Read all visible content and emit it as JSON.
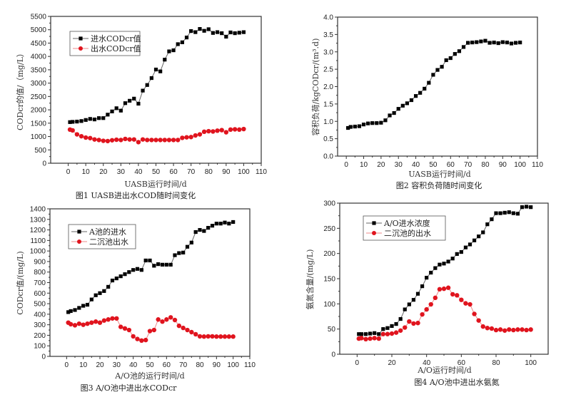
{
  "chart_data": [
    {
      "type": "line",
      "caption": "图1 UASB进出水COD随时间变化",
      "xlabel": "UASB运行时间/d",
      "ylabel": "CODcr的值/（mg/L）",
      "xlim": [
        -10,
        110
      ],
      "ylim": [
        0,
        5500
      ],
      "xticks": [
        0,
        10,
        20,
        30,
        40,
        50,
        60,
        70,
        80,
        90,
        100,
        110
      ],
      "yticks": [
        0,
        500,
        1000,
        1500,
        2000,
        2500,
        3000,
        3500,
        4000,
        4500,
        5000,
        5500
      ],
      "legend_position": "top-left",
      "series": [
        {
          "name": "进水CODcr值",
          "marker": "square",
          "color": "#000000",
          "x": [
            1,
            2.5,
            5,
            7.5,
            10,
            12.5,
            15,
            17.5,
            20,
            22.5,
            25,
            27.5,
            30,
            32.5,
            35,
            37.5,
            40,
            42.5,
            45,
            47.5,
            50,
            52.5,
            55,
            57.5,
            60,
            62.5,
            65,
            67.5,
            70,
            72.5,
            75,
            77.5,
            80,
            82.5,
            85,
            87.5,
            90,
            92.5,
            95,
            97.5,
            100
          ],
          "y": [
            1540,
            1550,
            1560,
            1580,
            1620,
            1660,
            1640,
            1690,
            1690,
            1820,
            1940,
            2060,
            1970,
            2250,
            2340,
            2420,
            2230,
            2720,
            2930,
            3190,
            3510,
            3440,
            3880,
            4190,
            4230,
            4460,
            4530,
            4710,
            4950,
            4910,
            5030,
            4960,
            5020,
            4880,
            4910,
            4870,
            4740,
            4900,
            4870,
            4890,
            4910
          ]
        },
        {
          "name": "出水CODcr值",
          "marker": "circle",
          "color": "#e0141e",
          "x": [
            1,
            2.5,
            5,
            7.5,
            10,
            12.5,
            15,
            17.5,
            20,
            22.5,
            25,
            27.5,
            30,
            32.5,
            35,
            37.5,
            40,
            42.5,
            45,
            47.5,
            50,
            52.5,
            55,
            57.5,
            60,
            62.5,
            65,
            67.5,
            70,
            72.5,
            75,
            77.5,
            80,
            82.5,
            85,
            87.5,
            90,
            92.5,
            95,
            97.5,
            100
          ],
          "y": [
            1260,
            1230,
            1080,
            1010,
            960,
            940,
            890,
            870,
            840,
            830,
            860,
            880,
            870,
            910,
            890,
            890,
            790,
            890,
            870,
            870,
            870,
            870,
            870,
            870,
            870,
            870,
            950,
            970,
            980,
            1040,
            1080,
            1180,
            1200,
            1190,
            1220,
            1240,
            1160,
            1260,
            1270,
            1260,
            1280
          ]
        }
      ]
    },
    {
      "type": "line",
      "caption": "图2 容积负荷随时间变化",
      "xlabel": "UASB运行时间/d",
      "ylabel": "容积负荷/kgCODcr/(m³.d)",
      "xlim": [
        -5,
        110
      ],
      "ylim": [
        0,
        4.0
      ],
      "xticks": [
        0,
        10,
        20,
        30,
        40,
        50,
        60,
        70,
        80,
        90,
        100,
        110
      ],
      "yticks": [
        0.0,
        0.5,
        1.0,
        1.5,
        2.0,
        2.5,
        3.0,
        3.5,
        4.0
      ],
      "series": [
        {
          "name": "容积负荷",
          "marker": "square",
          "color": "#000000",
          "x": [
            1,
            2.5,
            5,
            7.5,
            10,
            12.5,
            15,
            17.5,
            20,
            22.5,
            25,
            27.5,
            30,
            32.5,
            35,
            37.5,
            40,
            42.5,
            45,
            47.5,
            50,
            52.5,
            55,
            57.5,
            60,
            62.5,
            65,
            67.5,
            70,
            72.5,
            75,
            77.5,
            80,
            82.5,
            85,
            87.5,
            90,
            92.5,
            95,
            97.5,
            100
          ],
          "y": [
            0.81,
            0.84,
            0.85,
            0.86,
            0.91,
            0.94,
            0.95,
            0.95,
            0.96,
            1.03,
            1.17,
            1.24,
            1.36,
            1.45,
            1.52,
            1.61,
            1.73,
            1.82,
            1.94,
            2.11,
            2.34,
            2.48,
            2.57,
            2.76,
            2.82,
            2.94,
            3.02,
            3.14,
            3.26,
            3.27,
            3.28,
            3.3,
            3.32,
            3.26,
            3.27,
            3.25,
            3.28,
            3.27,
            3.24,
            3.26,
            3.27
          ]
        }
      ]
    },
    {
      "type": "line",
      "caption": "图3 A/O池中进出水CODcr",
      "xlabel": "A/O池的运行时间/d",
      "ylabel": "CODcr值/(mg/L)",
      "xlim": [
        -10,
        110
      ],
      "ylim": [
        0,
        1400
      ],
      "xticks": [
        0,
        10,
        20,
        30,
        40,
        50,
        60,
        70,
        80,
        90,
        100,
        110
      ],
      "yticks": [
        0,
        100,
        200,
        300,
        400,
        500,
        600,
        700,
        800,
        900,
        1000,
        1100,
        1200,
        1300,
        1400
      ],
      "legend_position": "top-left",
      "series": [
        {
          "name": "A池的进水",
          "marker": "square",
          "color": "#000000",
          "x": [
            1,
            2.5,
            5,
            7.5,
            10,
            12.5,
            15,
            17.5,
            20,
            22.5,
            25,
            27.5,
            30,
            32.5,
            35,
            37.5,
            40,
            42.5,
            45,
            47.5,
            50,
            52.5,
            55,
            57.5,
            60,
            62.5,
            65,
            67.5,
            70,
            72.5,
            75,
            77.5,
            80,
            82.5,
            85,
            87.5,
            90,
            92.5,
            95,
            97.5,
            100
          ],
          "y": [
            420,
            430,
            440,
            460,
            480,
            490,
            540,
            580,
            600,
            620,
            660,
            720,
            740,
            760,
            780,
            800,
            820,
            830,
            820,
            910,
            910,
            860,
            875,
            870,
            870,
            870,
            960,
            980,
            985,
            1040,
            1080,
            1180,
            1200,
            1190,
            1220,
            1240,
            1260,
            1260,
            1270,
            1260,
            1275
          ]
        },
        {
          "name": "二沉池出水",
          "marker": "circle",
          "color": "#e0141e",
          "x": [
            1,
            2.5,
            5,
            7.5,
            10,
            12.5,
            15,
            17.5,
            20,
            22.5,
            25,
            27.5,
            30,
            32.5,
            35,
            37.5,
            40,
            42.5,
            45,
            47.5,
            50,
            52.5,
            55,
            57.5,
            60,
            62.5,
            65,
            67.5,
            70,
            72.5,
            75,
            77.5,
            80,
            82.5,
            85,
            87.5,
            90,
            92.5,
            95,
            97.5,
            100
          ],
          "y": [
            320,
            305,
            295,
            310,
            300,
            310,
            320,
            330,
            320,
            340,
            350,
            360,
            360,
            280,
            265,
            250,
            190,
            165,
            150,
            155,
            240,
            250,
            350,
            330,
            350,
            370,
            345,
            290,
            270,
            250,
            230,
            210,
            190,
            188,
            190,
            190,
            188,
            188,
            188,
            188,
            188
          ]
        }
      ]
    },
    {
      "type": "line",
      "caption": "图4 A/O池中进出水氨氮",
      "xlabel": "A/O运行时间/d",
      "ylabel": "氨氮含量/(mg/L)",
      "xlim": [
        -10,
        110
      ],
      "ylim": [
        0,
        300
      ],
      "xticks": [
        0,
        20,
        40,
        60,
        80,
        100
      ],
      "yticks": [
        0,
        50,
        100,
        150,
        200,
        250,
        300
      ],
      "legend_position": "top-left",
      "series": [
        {
          "name": "A/O进水浓度",
          "marker": "square",
          "color": "#000000",
          "x": [
            1,
            2.5,
            5,
            7.5,
            10,
            12.5,
            15,
            17.5,
            20,
            22.5,
            25,
            27.5,
            30,
            32.5,
            35,
            37.5,
            40,
            42.5,
            45,
            47.5,
            50,
            52.5,
            55,
            57.5,
            60,
            62.5,
            65,
            67.5,
            70,
            72.5,
            75,
            77.5,
            80,
            82.5,
            85,
            87.5,
            90,
            92.5,
            95,
            97.5,
            100
          ],
          "y": [
            40,
            40,
            40,
            41,
            42,
            40,
            50,
            52,
            56,
            60,
            70,
            89,
            99,
            108,
            120,
            135,
            152,
            162,
            171,
            178,
            180,
            184,
            190,
            199,
            203,
            212,
            218,
            226,
            234,
            242,
            258,
            268,
            280,
            280,
            281,
            282,
            280,
            279,
            292,
            293,
            292
          ]
        },
        {
          "name": "二沉池的出水",
          "marker": "circle",
          "color": "#e0141e",
          "x": [
            1,
            2.5,
            5,
            7.5,
            10,
            12.5,
            15,
            17.5,
            20,
            22.5,
            25,
            27.5,
            30,
            32.5,
            35,
            37.5,
            40,
            42.5,
            45,
            47.5,
            50,
            52.5,
            55,
            57.5,
            60,
            62.5,
            65,
            67.5,
            70,
            72.5,
            75,
            77.5,
            80,
            82.5,
            85,
            87.5,
            90,
            92.5,
            95,
            97.5,
            100
          ],
          "y": [
            31,
            32,
            30,
            31,
            32,
            31,
            40,
            40,
            41,
            43,
            47,
            53,
            65,
            61,
            62,
            79,
            89,
            99,
            112,
            129,
            130,
            132,
            119,
            117,
            108,
            101,
            99,
            80,
            67,
            55,
            52,
            51,
            48,
            49,
            47,
            49,
            48,
            49,
            49,
            48,
            49
          ]
        }
      ]
    }
  ]
}
